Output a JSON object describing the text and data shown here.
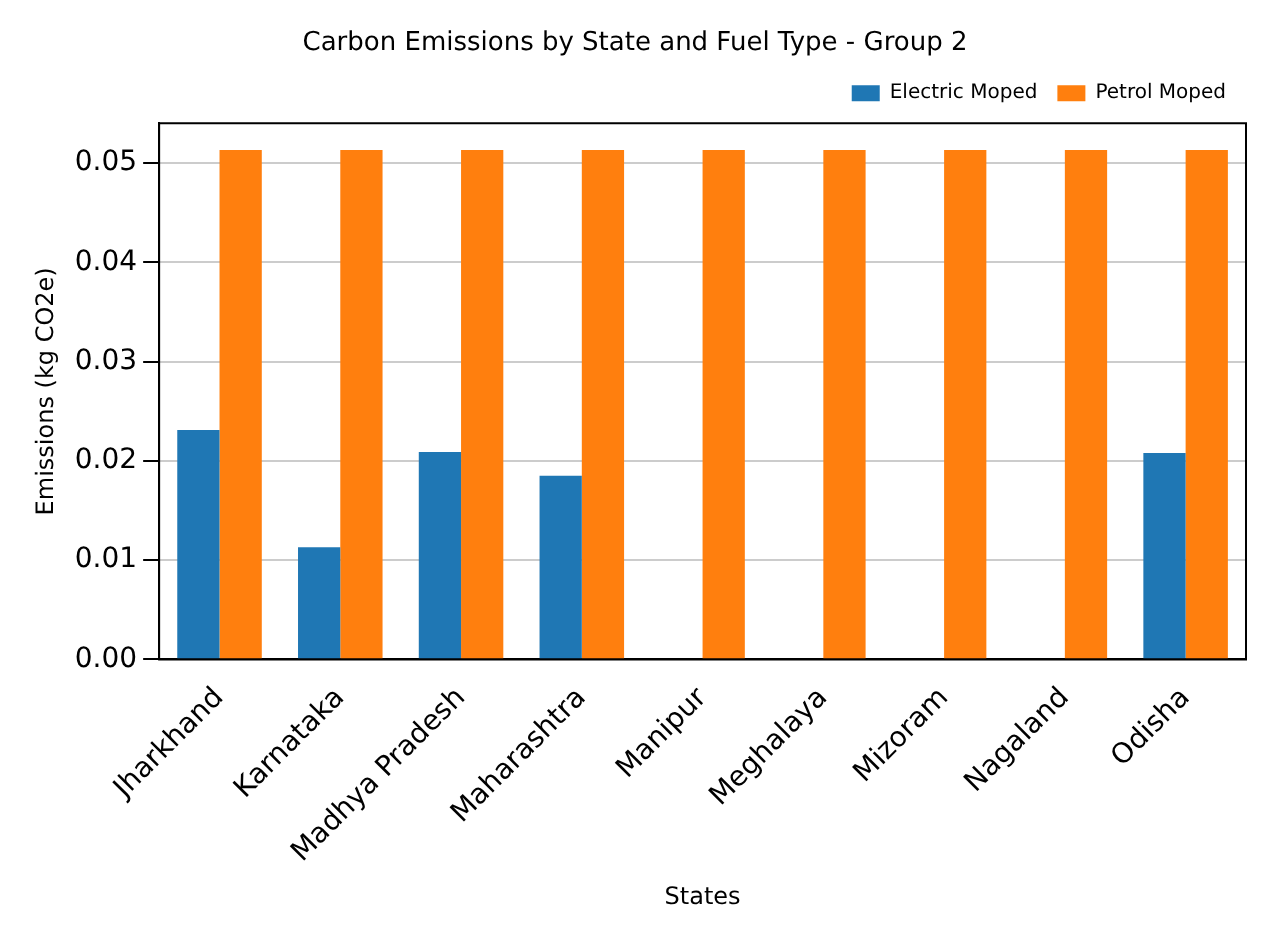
{
  "chart_data": {
    "type": "bar",
    "title": "Carbon Emissions by State and Fuel Type - Group 2",
    "xlabel": "States",
    "ylabel": "Emissions (kg CO2e)",
    "categories": [
      "Jharkhand",
      "Karnataka",
      "Madhya Pradesh",
      "Maharashtra",
      "Manipur",
      "Meghalaya",
      "Mizoram",
      "Nagaland",
      "Odisha"
    ],
    "series": [
      {
        "name": "Electric Moped",
        "color": "#1f77b4",
        "values": [
          0.0231,
          0.0113,
          0.0209,
          0.0185,
          null,
          null,
          null,
          null,
          0.0208
        ]
      },
      {
        "name": "Petrol Moped",
        "color": "#ff7f0e",
        "values": [
          0.0513,
          0.0513,
          0.0513,
          0.0513,
          0.0513,
          0.0513,
          0.0513,
          0.0513,
          0.0513
        ]
      }
    ],
    "ylim": [
      0,
      0.054
    ],
    "yticks": [
      {
        "value": 0,
        "label": "0.00"
      },
      {
        "value": 0.01,
        "label": "0.01"
      },
      {
        "value": 0.02,
        "label": "0.02"
      },
      {
        "value": 0.03,
        "label": "0.03"
      },
      {
        "value": 0.04,
        "label": "0.04"
      },
      {
        "value": 0.05,
        "label": "0.05"
      }
    ],
    "grid": "y",
    "legend": "top right"
  }
}
